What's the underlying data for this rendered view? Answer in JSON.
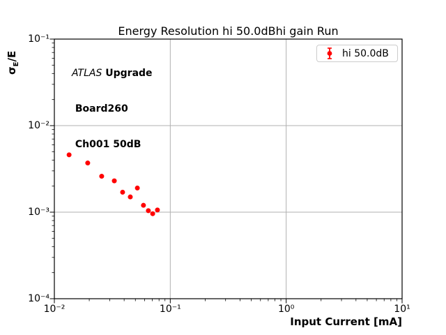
{
  "figure": {
    "title": "Energy Resolution hi 50.0dBhi gain Run",
    "xlabel": "Input Current [mA]",
    "ylabel": {
      "sigma": "σ",
      "sub": "E",
      "rest": "/E"
    },
    "annotation": {
      "line1_italic": "ATLAS",
      "line1_bold": " Upgrade",
      "line2": " Board260",
      "line3": " Ch001 50dB"
    },
    "legend": {
      "label": "hi 50.0dB",
      "marker": "red-errorbar-point"
    },
    "colors": {
      "marker": "#ff0000",
      "grid": "#b0b0b0",
      "spine": "#000000",
      "legend_border": "#cccccc",
      "text": "#000000"
    }
  },
  "chart_data": {
    "type": "scatter",
    "title": "Energy Resolution hi 50.0dBhi gain Run",
    "xlabel": "Input Current [mA]",
    "ylabel": "sigma_E/E",
    "x_scale": "log",
    "y_scale": "log",
    "xlim": [
      0.01,
      10
    ],
    "ylim": [
      0.0001,
      0.1
    ],
    "grid": true,
    "legend_position": "upper right",
    "x_ticks": [
      {
        "label": "10⁻²",
        "value": 0.01
      },
      {
        "label": "10⁻¹",
        "value": 0.1
      },
      {
        "label": "10⁰",
        "value": 1
      },
      {
        "label": "10¹",
        "value": 10
      }
    ],
    "y_ticks": [
      {
        "label": "10⁻¹",
        "value": 0.1
      },
      {
        "label": "10⁻²",
        "value": 0.01
      },
      {
        "label": "10⁻³",
        "value": 0.001
      },
      {
        "label": "10⁻⁴",
        "value": 0.0001
      }
    ],
    "series": [
      {
        "name": "hi 50.0dB",
        "color": "#ff0000",
        "marker": "circle-with-errorbar",
        "x": [
          0.0134,
          0.0194,
          0.0256,
          0.0329,
          0.0388,
          0.0452,
          0.052,
          0.0587,
          0.0647,
          0.0705,
          0.0775
        ],
        "y": [
          0.0046,
          0.0037,
          0.0026,
          0.0023,
          0.0017,
          0.0015,
          0.0019,
          0.0012,
          0.00104,
          0.00096,
          0.00106
        ]
      }
    ]
  }
}
